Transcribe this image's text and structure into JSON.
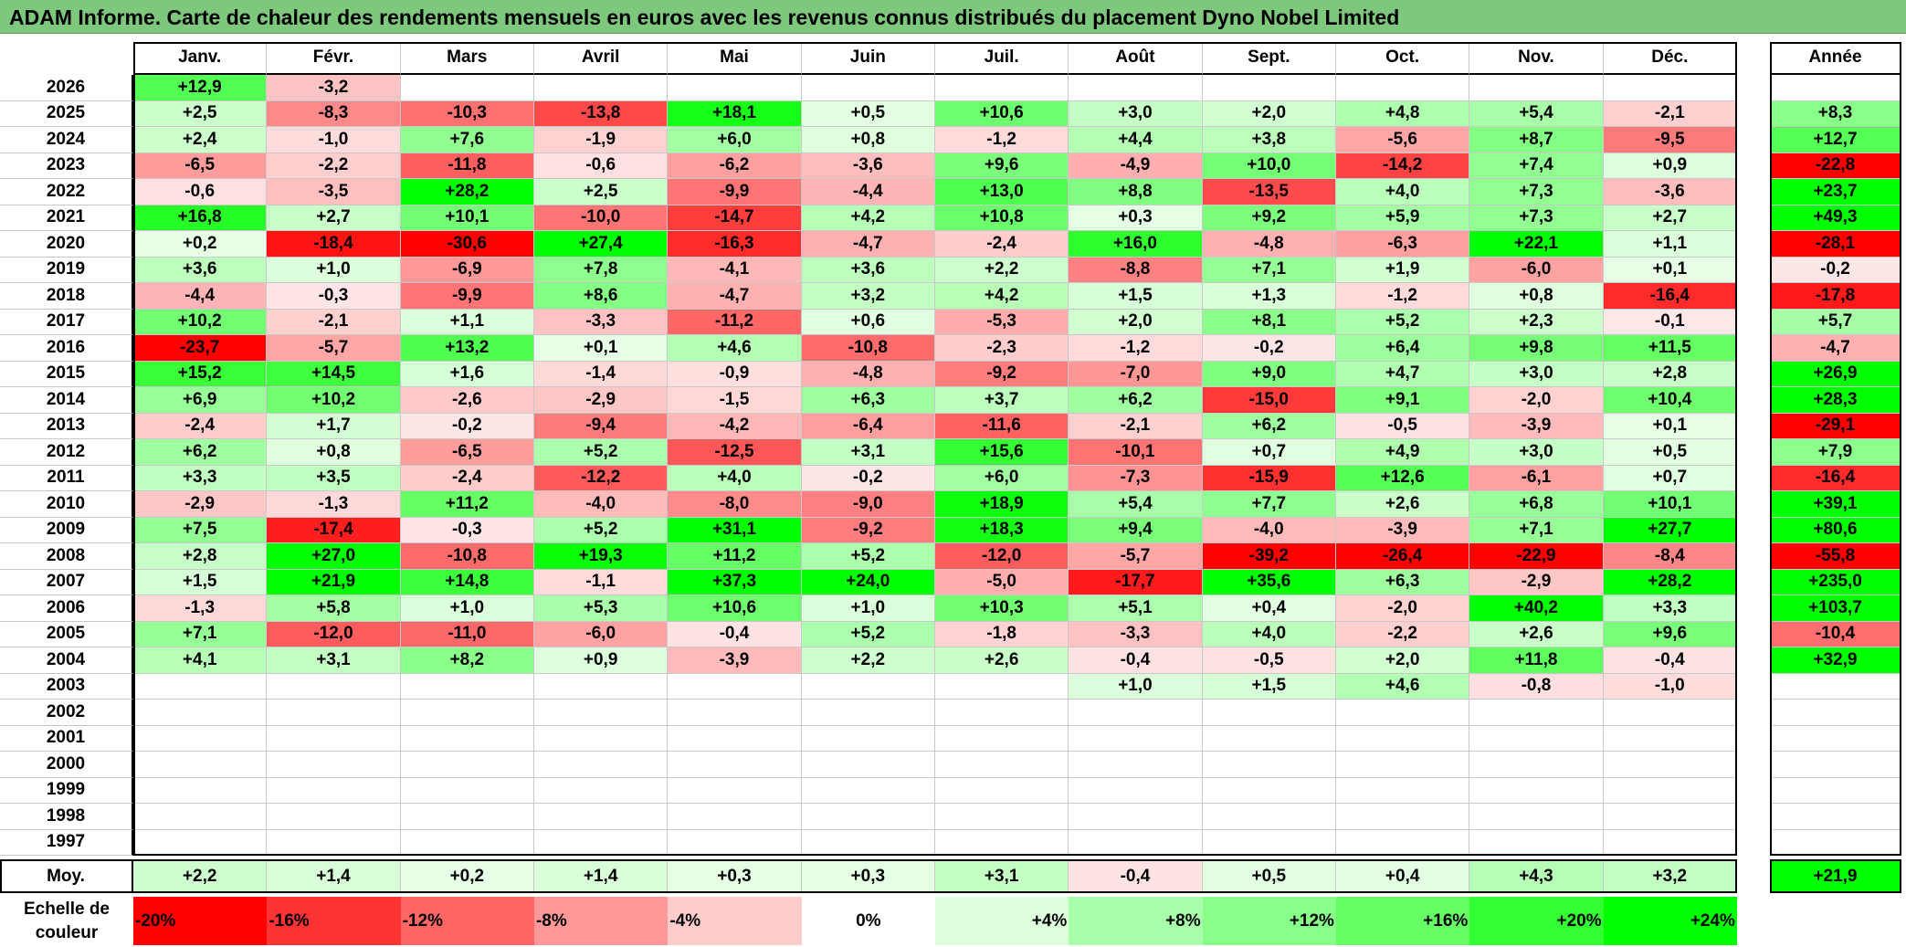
{
  "title": "ADAM Informe. Carte de chaleur des rendements mensuels en euros avec les revenus connus distribués du placement Dyno Nobel Limited",
  "chart_data": {
    "type": "heatmap",
    "title": "ADAM Informe. Carte de chaleur des rendements mensuels en euros avec les revenus connus distribués du placement Dyno Nobel Limited",
    "columns": [
      "Janv.",
      "Févr.",
      "Mars",
      "Avril",
      "Mai",
      "Juin",
      "Juil.",
      "Août",
      "Sept.",
      "Oct.",
      "Nov.",
      "Déc."
    ],
    "year_column_label": "Année",
    "rows": [
      {
        "year": "2026",
        "months": [
          "+12,9",
          "-3,2",
          "",
          "",
          "",
          "",
          "",
          "",
          "",
          "",
          "",
          ""
        ],
        "annual": ""
      },
      {
        "year": "2025",
        "months": [
          "+2,5",
          "-8,3",
          "-10,3",
          "-13,8",
          "+18,1",
          "+0,5",
          "+10,6",
          "+3,0",
          "+2,0",
          "+4,8",
          "+5,4",
          "-2,1"
        ],
        "annual": "+8,3"
      },
      {
        "year": "2024",
        "months": [
          "+2,4",
          "-1,0",
          "+7,6",
          "-1,9",
          "+6,0",
          "+0,8",
          "-1,2",
          "+4,4",
          "+3,8",
          "-5,6",
          "+8,7",
          "-9,5"
        ],
        "annual": "+12,7"
      },
      {
        "year": "2023",
        "months": [
          "-6,5",
          "-2,2",
          "-11,8",
          "-0,6",
          "-6,2",
          "-3,6",
          "+9,6",
          "-4,9",
          "+10,0",
          "-14,2",
          "+7,4",
          "+0,9"
        ],
        "annual": "-22,8"
      },
      {
        "year": "2022",
        "months": [
          "-0,6",
          "-3,5",
          "+28,2",
          "+2,5",
          "-9,9",
          "-4,4",
          "+13,0",
          "+8,8",
          "-13,5",
          "+4,0",
          "+7,3",
          "-3,6"
        ],
        "annual": "+23,7"
      },
      {
        "year": "2021",
        "months": [
          "+16,8",
          "+2,7",
          "+10,1",
          "-10,0",
          "-14,7",
          "+4,2",
          "+10,8",
          "+0,3",
          "+9,2",
          "+5,9",
          "+7,3",
          "+2,7"
        ],
        "annual": "+49,3"
      },
      {
        "year": "2020",
        "months": [
          "+0,2",
          "-18,4",
          "-30,6",
          "+27,4",
          "-16,3",
          "-4,7",
          "-2,4",
          "+16,0",
          "-4,8",
          "-6,3",
          "+22,1",
          "+1,1"
        ],
        "annual": "-28,1"
      },
      {
        "year": "2019",
        "months": [
          "+3,6",
          "+1,0",
          "-6,9",
          "+7,8",
          "-4,1",
          "+3,6",
          "+2,2",
          "-8,8",
          "+7,1",
          "+1,9",
          "-6,0",
          "+0,1"
        ],
        "annual": "-0,2"
      },
      {
        "year": "2018",
        "months": [
          "-4,4",
          "-0,3",
          "-9,9",
          "+8,6",
          "-4,7",
          "+3,2",
          "+4,2",
          "+1,5",
          "+1,3",
          "-1,2",
          "+0,8",
          "-16,4"
        ],
        "annual": "-17,8"
      },
      {
        "year": "2017",
        "months": [
          "+10,2",
          "-2,1",
          "+1,1",
          "-3,3",
          "-11,2",
          "+0,6",
          "-5,3",
          "+2,0",
          "+8,1",
          "+5,2",
          "+2,3",
          "-0,1"
        ],
        "annual": "+5,7"
      },
      {
        "year": "2016",
        "months": [
          "-23,7",
          "-5,7",
          "+13,2",
          "+0,1",
          "+4,6",
          "-10,8",
          "-2,3",
          "-1,2",
          "-0,2",
          "+6,4",
          "+9,8",
          "+11,5"
        ],
        "annual": "-4,7"
      },
      {
        "year": "2015",
        "months": [
          "+15,2",
          "+14,5",
          "+1,6",
          "-1,4",
          "-0,9",
          "-4,8",
          "-9,2",
          "-7,0",
          "+9,0",
          "+4,7",
          "+3,0",
          "+2,8"
        ],
        "annual": "+26,9"
      },
      {
        "year": "2014",
        "months": [
          "+6,9",
          "+10,2",
          "-2,6",
          "-2,9",
          "-1,5",
          "+6,3",
          "+3,7",
          "+6,2",
          "-15,0",
          "+9,1",
          "-2,0",
          "+10,4"
        ],
        "annual": "+28,3"
      },
      {
        "year": "2013",
        "months": [
          "-2,4",
          "+1,7",
          "-0,2",
          "-9,4",
          "-4,2",
          "-6,4",
          "-11,6",
          "-2,1",
          "+6,2",
          "-0,5",
          "-3,9",
          "+0,1"
        ],
        "annual": "-29,1"
      },
      {
        "year": "2012",
        "months": [
          "+6,2",
          "+0,8",
          "-6,5",
          "+5,2",
          "-12,5",
          "+3,1",
          "+15,6",
          "-10,1",
          "+0,7",
          "+4,9",
          "+3,0",
          "+0,5"
        ],
        "annual": "+7,9"
      },
      {
        "year": "2011",
        "months": [
          "+3,3",
          "+3,5",
          "-2,4",
          "-12,2",
          "+4,0",
          "-0,2",
          "+6,0",
          "-7,3",
          "-15,9",
          "+12,6",
          "-6,1",
          "+0,7"
        ],
        "annual": "-16,4"
      },
      {
        "year": "2010",
        "months": [
          "-2,9",
          "-1,3",
          "+11,2",
          "-4,0",
          "-8,0",
          "-9,0",
          "+18,9",
          "+5,4",
          "+7,7",
          "+2,6",
          "+6,8",
          "+10,1"
        ],
        "annual": "+39,1"
      },
      {
        "year": "2009",
        "months": [
          "+7,5",
          "-17,4",
          "-0,3",
          "+5,2",
          "+31,1",
          "-9,2",
          "+18,3",
          "+9,4",
          "-4,0",
          "-3,9",
          "+7,1",
          "+27,7"
        ],
        "annual": "+80,6"
      },
      {
        "year": "2008",
        "months": [
          "+2,8",
          "+27,0",
          "-10,8",
          "+19,3",
          "+11,2",
          "+5,2",
          "-12,0",
          "-5,7",
          "-39,2",
          "-26,4",
          "-22,9",
          "-8,4"
        ],
        "annual": "-55,8"
      },
      {
        "year": "2007",
        "months": [
          "+1,5",
          "+21,9",
          "+14,8",
          "-1,1",
          "+37,3",
          "+24,0",
          "-5,0",
          "-17,7",
          "+35,6",
          "+6,3",
          "-2,9",
          "+28,2"
        ],
        "annual": "+235,0"
      },
      {
        "year": "2006",
        "months": [
          "-1,3",
          "+5,8",
          "+1,0",
          "+5,3",
          "+10,6",
          "+1,0",
          "+10,3",
          "+5,1",
          "+0,4",
          "-2,0",
          "+40,2",
          "+3,3"
        ],
        "annual": "+103,7"
      },
      {
        "year": "2005",
        "months": [
          "+7,1",
          "-12,0",
          "-11,0",
          "-6,0",
          "-0,4",
          "+5,2",
          "-1,8",
          "-3,3",
          "+4,0",
          "-2,2",
          "+2,6",
          "+9,6"
        ],
        "annual": "-10,4"
      },
      {
        "year": "2004",
        "months": [
          "+4,1",
          "+3,1",
          "+8,2",
          "+0,9",
          "-3,9",
          "+2,2",
          "+2,6",
          "-0,4",
          "-0,5",
          "+2,0",
          "+11,8",
          "-0,4"
        ],
        "annual": "+32,9"
      },
      {
        "year": "2003",
        "months": [
          "",
          "",
          "",
          "",
          "",
          "",
          "",
          "+1,0",
          "+1,5",
          "+4,6",
          "-0,8",
          "-1,0"
        ],
        "annual": ""
      },
      {
        "year": "2002",
        "months": [
          "",
          "",
          "",
          "",
          "",
          "",
          "",
          "",
          "",
          "",
          "",
          ""
        ],
        "annual": ""
      },
      {
        "year": "2001",
        "months": [
          "",
          "",
          "",
          "",
          "",
          "",
          "",
          "",
          "",
          "",
          "",
          ""
        ],
        "annual": ""
      },
      {
        "year": "2000",
        "months": [
          "",
          "",
          "",
          "",
          "",
          "",
          "",
          "",
          "",
          "",
          "",
          ""
        ],
        "annual": ""
      },
      {
        "year": "1999",
        "months": [
          "",
          "",
          "",
          "",
          "",
          "",
          "",
          "",
          "",
          "",
          "",
          ""
        ],
        "annual": ""
      },
      {
        "year": "1998",
        "months": [
          "",
          "",
          "",
          "",
          "",
          "",
          "",
          "",
          "",
          "",
          "",
          ""
        ],
        "annual": ""
      },
      {
        "year": "1997",
        "months": [
          "",
          "",
          "",
          "",
          "",
          "",
          "",
          "",
          "",
          "",
          "",
          ""
        ],
        "annual": ""
      }
    ],
    "average": {
      "label": "Moy.",
      "months": [
        "+2,2",
        "+1,4",
        "+0,2",
        "+1,4",
        "+0,3",
        "+0,3",
        "+3,1",
        "-0,4",
        "+0,5",
        "+0,4",
        "+4,3",
        "+3,2"
      ],
      "annual": "+21,9"
    },
    "color_scale": {
      "label": "Echelle de couleur",
      "stops": [
        "-20%",
        "-16%",
        "-12%",
        "-8%",
        "-4%",
        "0%",
        "+4%",
        "+8%",
        "+12%",
        "+16%",
        "+20%",
        "+24%"
      ],
      "colors": [
        "#ff0000",
        "#ff3333",
        "#ff6666",
        "#ff9999",
        "#ffcccc",
        "#ffffff",
        "#ddffdd",
        "#aaffaa",
        "#88ff88",
        "#66ff66",
        "#33ff33",
        "#00ff00"
      ]
    }
  }
}
